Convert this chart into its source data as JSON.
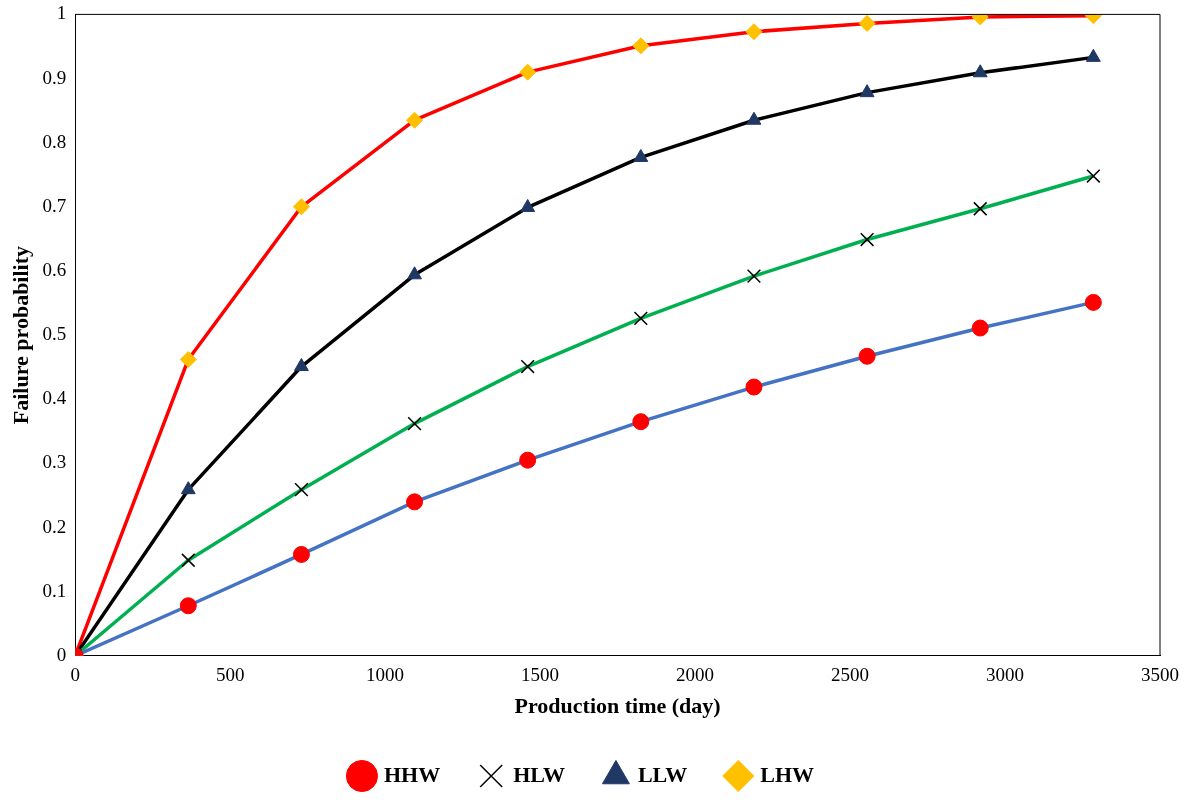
{
  "chart_data": {
    "type": "line",
    "xlabel": "Production time (day)",
    "ylabel": "Failure probability",
    "x": [
      0,
      365,
      730,
      1095,
      1460,
      1825,
      2190,
      2555,
      2920,
      3285
    ],
    "series": [
      {
        "name": "HHW",
        "color": "#4472c4",
        "marker": "circle",
        "colors": [
          "#ff0000",
          "#ff0000",
          "#ff0000",
          "#ff0000",
          "#ff0000",
          "#ff0000",
          "#ff0000",
          "#ff0000",
          "#ff0000",
          "#ff0000"
        ],
        "values": [
          0,
          0.078,
          0.158,
          0.24,
          0.305,
          0.365,
          0.419,
          0.467,
          0.511,
          0.551
        ]
      },
      {
        "name": "HLW",
        "color": "#00b050",
        "marker": "cross",
        "colors": [
          "#000000",
          "#000000",
          "#000000",
          "#000000",
          "#000000",
          "#000000",
          "#000000",
          "#000000",
          "#000000",
          "#000000"
        ],
        "values": [
          0,
          0.149,
          0.259,
          0.362,
          0.451,
          0.526,
          0.592,
          0.649,
          0.697,
          0.748
        ]
      },
      {
        "name": "LLW",
        "color": "#000000",
        "marker": "triangle",
        "colors": [
          "#1f3864",
          "#1f3864",
          "#1f3864",
          "#1f3864",
          "#1f3864",
          "#1f3864",
          "#1f3864",
          "#1f3864",
          "#1f3864",
          "#1f3864"
        ],
        "values": [
          0,
          0.259,
          0.451,
          0.594,
          0.699,
          0.777,
          0.835,
          0.878,
          0.909,
          0.933
        ]
      },
      {
        "name": "LHW",
        "color": "#ff0000",
        "marker": "diamond",
        "colors": [
          "#ffc000",
          "#ffc000",
          "#ffc000",
          "#ffc000",
          "#ffc000",
          "#ffc000",
          "#ffc000",
          "#ffc000",
          "#ffc000",
          "#ffc000"
        ],
        "values": [
          0,
          0.462,
          0.7,
          0.835,
          0.91,
          0.951,
          0.973,
          0.986,
          0.996,
          0.998
        ]
      }
    ],
    "xlim": [
      0,
      3500
    ],
    "xticks": [
      0,
      500,
      1000,
      1500,
      2000,
      2500,
      3000,
      3500
    ],
    "ylim": [
      0,
      1
    ],
    "yticks": [
      0,
      0.1,
      0.2,
      0.3,
      0.4,
      0.5,
      0.6,
      0.7,
      0.8,
      0.9,
      1
    ],
    "grid": false,
    "legend": "bottom",
    "line_style": "solid"
  }
}
